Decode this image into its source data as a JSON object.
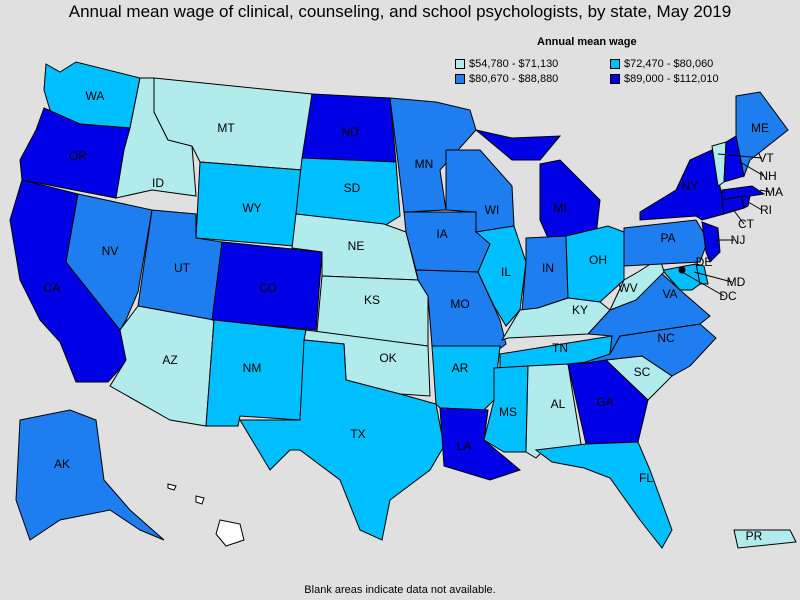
{
  "title": "Annual mean wage of clinical, counseling, and school psychologists, by state, May 2019",
  "legend": {
    "title": "Annual mean wage",
    "items": [
      {
        "label": "$54,780 - $71,130",
        "color": "#b2ebeb"
      },
      {
        "label": "$72,470 - $80,060",
        "color": "#00bfff"
      },
      {
        "label": "$80,670 - $88,880",
        "color": "#1e7ef0"
      },
      {
        "label": "$89,000 - $112,010",
        "color": "#0000e6"
      }
    ]
  },
  "footnote": "Blank areas indicate data not available.",
  "map_data": {
    "states": [
      {
        "abbr": "WA",
        "tier": 1
      },
      {
        "abbr": "OR",
        "tier": 3
      },
      {
        "abbr": "CA",
        "tier": 3
      },
      {
        "abbr": "ID",
        "tier": 0
      },
      {
        "abbr": "NV",
        "tier": 2
      },
      {
        "abbr": "MT",
        "tier": 0
      },
      {
        "abbr": "WY",
        "tier": 1
      },
      {
        "abbr": "UT",
        "tier": 2
      },
      {
        "abbr": "AZ",
        "tier": 0
      },
      {
        "abbr": "CO",
        "tier": 3
      },
      {
        "abbr": "NM",
        "tier": 1
      },
      {
        "abbr": "ND",
        "tier": 3
      },
      {
        "abbr": "SD",
        "tier": 1
      },
      {
        "abbr": "NE",
        "tier": 0
      },
      {
        "abbr": "KS",
        "tier": 0
      },
      {
        "abbr": "OK",
        "tier": 0
      },
      {
        "abbr": "TX",
        "tier": 1
      },
      {
        "abbr": "MN",
        "tier": 2
      },
      {
        "abbr": "IA",
        "tier": 2
      },
      {
        "abbr": "MO",
        "tier": 2
      },
      {
        "abbr": "AR",
        "tier": 1
      },
      {
        "abbr": "LA",
        "tier": 3
      },
      {
        "abbr": "WI",
        "tier": 2
      },
      {
        "abbr": "IL",
        "tier": 1
      },
      {
        "abbr": "MI",
        "tier": 3
      },
      {
        "abbr": "IN",
        "tier": 2
      },
      {
        "abbr": "OH",
        "tier": 1
      },
      {
        "abbr": "KY",
        "tier": 0
      },
      {
        "abbr": "TN",
        "tier": 1
      },
      {
        "abbr": "MS",
        "tier": 1
      },
      {
        "abbr": "AL",
        "tier": 0
      },
      {
        "abbr": "GA",
        "tier": 3
      },
      {
        "abbr": "FL",
        "tier": 1
      },
      {
        "abbr": "SC",
        "tier": 0
      },
      {
        "abbr": "NC",
        "tier": 2
      },
      {
        "abbr": "VA",
        "tier": 2
      },
      {
        "abbr": "WV",
        "tier": 0
      },
      {
        "abbr": "PA",
        "tier": 2
      },
      {
        "abbr": "NY",
        "tier": 3
      },
      {
        "abbr": "NJ",
        "tier": 3
      },
      {
        "abbr": "DE",
        "tier": 1
      },
      {
        "abbr": "MD",
        "tier": 1
      },
      {
        "abbr": "DC",
        "tier": 1
      },
      {
        "abbr": "CT",
        "tier": 3
      },
      {
        "abbr": "RI",
        "tier": 3
      },
      {
        "abbr": "MA",
        "tier": 3
      },
      {
        "abbr": "VT",
        "tier": 0
      },
      {
        "abbr": "NH",
        "tier": 3
      },
      {
        "abbr": "ME",
        "tier": 2
      },
      {
        "abbr": "AK",
        "tier": 2
      },
      {
        "abbr": "HI",
        "tier": null
      },
      {
        "abbr": "PR",
        "tier": 0
      }
    ]
  }
}
